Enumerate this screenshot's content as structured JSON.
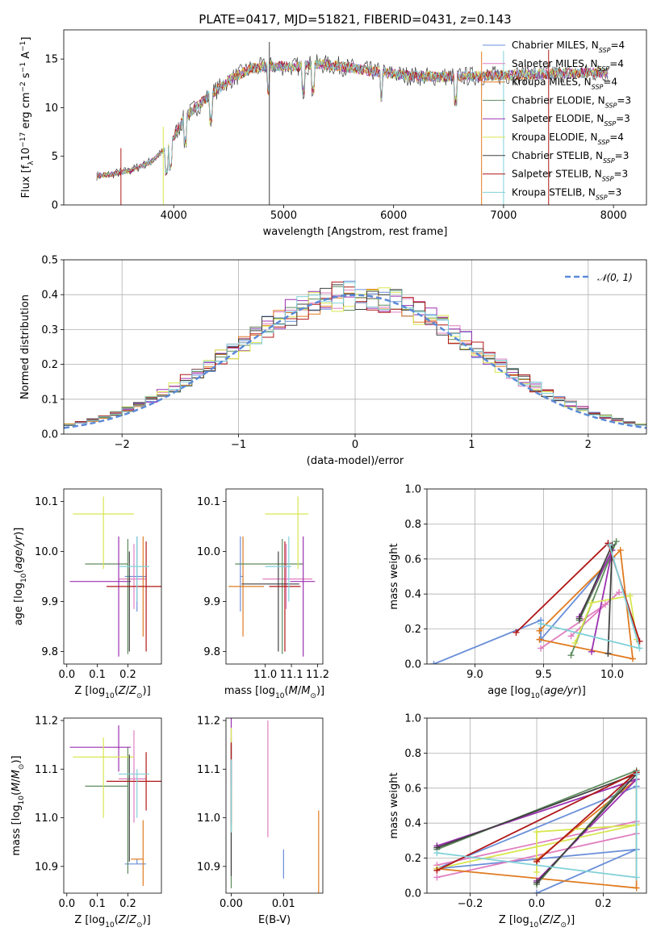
{
  "figure": {
    "title": "PLATE=0417, MJD=51821, FIBERID=0431, z=0.143"
  },
  "models": [
    {
      "name": "Chabrier MILES, N_SSP=4",
      "label": "Chabrier MILES, N",
      "nssp": "=4",
      "color": "#6a8fd8",
      "age": 9.95,
      "age_err": [
        0.07,
        0.08
      ],
      "logZ": 0.23,
      "logZ_err": [
        0.04,
        0.03
      ],
      "mass": 10.905,
      "mass_err": [
        0.0,
        0.01
      ],
      "ebv": 0.01,
      "weights": [
        {
          "age": 8.7,
          "Z": 0.0,
          "w": 0.0
        },
        {
          "age": 9.48,
          "Z": 0.3,
          "w": 0.25
        },
        {
          "age": 9.48,
          "Z": -0.3,
          "w": 0.14
        },
        {
          "age": 10.0,
          "Z": 0.3,
          "w": 0.61
        }
      ]
    },
    {
      "name": "Salpeter MILES, N_SSP=4",
      "label": "Salpeter MILES, N",
      "nssp": "=4",
      "color": "#e07ec0",
      "age": 9.945,
      "age_err": [
        0.06,
        0.07
      ],
      "logZ": 0.22,
      "logZ_err": [
        0.05,
        0.04
      ],
      "mass": 11.08,
      "mass_err": [
        0.09,
        0.1
      ],
      "ebv": 0.007,
      "weights": [
        {
          "age": 9.48,
          "Z": -0.3,
          "w": 0.09
        },
        {
          "age": 9.95,
          "Z": 0.3,
          "w": 0.34
        },
        {
          "age": 10.05,
          "Z": 0.3,
          "w": 0.41
        },
        {
          "age": 9.7,
          "Z": -0.3,
          "w": 0.16
        }
      ]
    },
    {
      "name": "Kroupa MILES, N_SSP=4",
      "label": "Kroupa MILES, N",
      "nssp": "=4",
      "color": "#e07b20",
      "age": 9.93,
      "age_err": [
        0.1,
        0.1
      ],
      "logZ": 0.25,
      "logZ_err": [
        0.04,
        0.0
      ],
      "mass": 10.915,
      "mass_err": [
        0.055,
        0.08
      ],
      "ebv": 0.0167,
      "weights": [
        {
          "age": 9.47,
          "Z": 0.0,
          "w": 0.19
        },
        {
          "age": 10.06,
          "Z": 0.3,
          "w": 0.65
        },
        {
          "age": 10.15,
          "Z": 0.3,
          "w": 0.03
        },
        {
          "age": 9.47,
          "Z": -0.3,
          "w": 0.14
        }
      ]
    },
    {
      "name": "Chabrier ELODIE, N_SSP=3",
      "label": "Chabrier ELODIE, N",
      "nssp": "=3",
      "color": "#5e8c5e",
      "age": 9.975,
      "age_err": [
        0.18,
        0.05
      ],
      "logZ": 0.2,
      "logZ_err": [
        0.14,
        0.0
      ],
      "mass": 11.065,
      "mass_err": [
        0.18,
        0.08
      ],
      "ebv": 0.0,
      "weights": [
        {
          "age": 9.7,
          "Z": 0.0,
          "w": 0.05
        },
        {
          "age": 10.03,
          "Z": 0.3,
          "w": 0.7
        },
        {
          "age": 9.76,
          "Z": -0.3,
          "w": 0.25
        }
      ]
    },
    {
      "name": "Salpeter ELODIE, N_SSP=3",
      "label": "Salpeter ELODIE, N",
      "nssp": "=3",
      "color": "#9b30b0",
      "age": 9.94,
      "age_err": [
        0.15,
        0.09
      ],
      "logZ": 0.17,
      "logZ_err": [
        0.16,
        0.04
      ],
      "mass": 11.145,
      "mass_err": [
        0.05,
        0.045
      ],
      "ebv": 0.0,
      "weights": [
        {
          "age": 9.85,
          "Z": 0.0,
          "w": 0.07
        },
        {
          "age": 10.0,
          "Z": 0.3,
          "w": 0.65
        },
        {
          "age": 9.76,
          "Z": -0.3,
          "w": 0.27
        }
      ]
    },
    {
      "name": "Kroupa ELODIE, N_SSP=4",
      "label": "Kroupa ELODIE, N",
      "nssp": "=4",
      "color": "#d8e650",
      "age": 10.075,
      "age_err": [
        0.11,
        0.035
      ],
      "logZ": 0.12,
      "logZ_err": [
        0.1,
        0.1
      ],
      "mass": 11.125,
      "mass_err": [
        0.125,
        0.04
      ],
      "ebv": 0.0,
      "weights": [
        {
          "age": 9.73,
          "Z": 0.0,
          "w": 0.12
        },
        {
          "age": 9.85,
          "Z": 0.0,
          "w": 0.35
        },
        {
          "age": 10.13,
          "Z": 0.3,
          "w": 0.39
        },
        {
          "age": 10.18,
          "Z": -0.3,
          "w": 0.14
        }
      ]
    },
    {
      "name": "Chabrier STELIB, N_SSP=3",
      "label": "Chabrier STELIB, N",
      "nssp": "=3",
      "color": "#404040",
      "age": 9.935,
      "age_err": [
        0.135,
        0.065
      ],
      "logZ": 0.205,
      "logZ_err": [
        0.0,
        0.0
      ],
      "mass": 11.05,
      "mass_err": [
        0.14,
        0.08
      ],
      "ebv": 0.0,
      "weights": [
        {
          "age": 9.97,
          "Z": 0.0,
          "w": 0.06
        },
        {
          "age": 10.0,
          "Z": 0.3,
          "w": 0.68
        },
        {
          "age": 9.76,
          "Z": -0.3,
          "w": 0.26
        }
      ]
    },
    {
      "name": "Salpeter STELIB, N_SSP=3",
      "label": "Salpeter STELIB, N",
      "nssp": "=3",
      "color": "#b01818",
      "age": 9.93,
      "age_err": [
        0.13,
        0.09
      ],
      "logZ": 0.26,
      "logZ_err": [
        0.13,
        0.12
      ],
      "mass": 11.075,
      "mass_err": [
        0.06,
        0.06
      ],
      "ebv": 0.0,
      "weights": [
        {
          "age": 9.3,
          "Z": 0.0,
          "w": 0.18
        },
        {
          "age": 9.97,
          "Z": 0.3,
          "w": 0.69
        },
        {
          "age": 10.2,
          "Z": -0.3,
          "w": 0.13
        }
      ]
    },
    {
      "name": "Kroupa STELIB, N_SSP=3",
      "label": "Kroupa STELIB, N",
      "nssp": "=3",
      "color": "#80d0d8",
      "age": 9.97,
      "age_err": [
        0.07,
        0.06
      ],
      "logZ": 0.23,
      "logZ_err": [
        0.06,
        0.04
      ],
      "mass": 11.09,
      "mass_err": [
        0.09,
        0.01
      ],
      "ebv": 0.0,
      "weights": [
        {
          "age": 9.98,
          "Z": 0.3,
          "w": 0.68
        },
        {
          "age": 10.2,
          "Z": 0.3,
          "w": 0.09
        },
        {
          "age": 9.48,
          "Z": -0.3,
          "w": 0.23
        }
      ]
    }
  ],
  "chart_data": [
    {
      "type": "line",
      "panel": "spectrum",
      "title": "PLATE=0417, MJD=51821, FIBERID=0431, z=0.143",
      "xlabel": "wavelength [Angstrom, rest frame]",
      "ylabel": "Flux [f_λ 10^-17 erg cm^-2 s^-1 A^-1]",
      "xlim": [
        3000,
        8300
      ],
      "ylim": [
        0,
        18
      ],
      "xticks": [
        4000,
        5000,
        6000,
        7000,
        8000
      ],
      "yticks": [
        0,
        5,
        10,
        15
      ],
      "grid": false,
      "legend": "top-right",
      "continuum": {
        "x": [
          3300,
          3400,
          3600,
          3800,
          3950,
          4100,
          4300,
          4500,
          4700,
          4900,
          5100,
          5300,
          5500,
          5700,
          5900,
          6100,
          6300,
          6600,
          6900,
          7200,
          7500,
          7800,
          7950
        ],
        "y": [
          3.0,
          3.1,
          3.5,
          4.5,
          6.0,
          9.0,
          11.0,
          12.8,
          14.0,
          14.3,
          14.2,
          14.5,
          14.3,
          13.9,
          13.6,
          13.3,
          13.2,
          13.2,
          13.3,
          13.4,
          13.5,
          13.6,
          13.6
        ]
      },
      "series": [
        {
          "name": "Chabrier MILES, N_SSP=4"
        },
        {
          "name": "Salpeter MILES, N_SSP=4"
        },
        {
          "name": "Kroupa MILES, N_SSP=4"
        },
        {
          "name": "Chabrier ELODIE, N_SSP=3"
        },
        {
          "name": "Salpeter ELODIE, N_SSP=3"
        },
        {
          "name": "Kroupa ELODIE, N_SSP=4"
        },
        {
          "name": "Chabrier STELIB, N_SSP=3"
        },
        {
          "name": "Salpeter STELIB, N_SSP=3"
        },
        {
          "name": "Kroupa STELIB, N_SSP=3"
        }
      ]
    },
    {
      "type": "line",
      "panel": "residuals",
      "xlabel": "(data-model)/error",
      "ylabel": "Normed distribution",
      "xlim": [
        -2.5,
        2.5
      ],
      "ylim": [
        0,
        0.5
      ],
      "xticks": [
        -2,
        -1,
        0,
        1,
        2
      ],
      "yticks": [
        0.0,
        0.1,
        0.2,
        0.3,
        0.4,
        0.5
      ],
      "grid": true,
      "legend": "top-right",
      "reference": {
        "name": "N(0,1)",
        "mean": 0,
        "sigma": 1
      },
      "bin_width": 0.1
    },
    {
      "type": "scatter",
      "panel": "age-vs-Z",
      "xlabel": "Z [log10(Z/Z⊙)]",
      "ylabel": "age [log10(age/yr)]",
      "xlim": [
        -0.01,
        0.31
      ],
      "ylim": [
        9.775,
        10.125
      ],
      "xticks": [
        0.0,
        0.1,
        0.2
      ],
      "yticks": [
        9.8,
        9.9,
        10.0,
        10.1
      ],
      "grid": false
    },
    {
      "type": "scatter",
      "panel": "age-vs-mass",
      "xlabel": "mass [log10(M/M⊙)]",
      "ylabel": "",
      "xlim": [
        10.85,
        11.22
      ],
      "ylim": [
        9.775,
        10.125
      ],
      "xticks": [
        11.0,
        11.1,
        11.2
      ],
      "yticks": [
        9.8,
        9.9,
        10.0,
        10.1
      ],
      "grid": false
    },
    {
      "type": "line",
      "panel": "weight-vs-age",
      "xlabel": "age [log10(age/yr)]",
      "ylabel": "mass weight",
      "xlim": [
        8.65,
        10.25
      ],
      "ylim": [
        0,
        1
      ],
      "xticks": [
        9.0,
        9.5,
        10.0
      ],
      "yticks": [
        0.0,
        0.2,
        0.4,
        0.6,
        0.8,
        1.0
      ],
      "grid": true
    },
    {
      "type": "scatter",
      "panel": "mass-vs-Z",
      "xlabel": "Z [log10(Z/Z⊙)]",
      "ylabel": "mass [log10(M/M⊙)]",
      "xlim": [
        -0.01,
        0.31
      ],
      "ylim": [
        10.845,
        11.205
      ],
      "xticks": [
        0.0,
        0.1,
        0.2
      ],
      "yticks": [
        10.9,
        11.0,
        11.1,
        11.2
      ],
      "grid": false
    },
    {
      "type": "scatter",
      "panel": "mass-vs-EBV",
      "xlabel": "E(B-V)",
      "ylabel": "",
      "xlim": [
        -0.001,
        0.0175
      ],
      "ylim": [
        10.845,
        11.205
      ],
      "xticks": [
        0.0,
        0.01
      ],
      "yticks": [
        10.9,
        11.0,
        11.1,
        11.2
      ],
      "grid": false
    },
    {
      "type": "line",
      "panel": "weight-vs-Z",
      "xlabel": "Z [log10(Z/Z⊙)]",
      "ylabel": "mass weight",
      "xlim": [
        -0.33,
        0.33
      ],
      "ylim": [
        0,
        1
      ],
      "xticks": [
        -0.2,
        0.0,
        0.2
      ],
      "yticks": [
        0.0,
        0.2,
        0.4,
        0.6,
        0.8,
        1.0
      ],
      "grid": true
    }
  ]
}
